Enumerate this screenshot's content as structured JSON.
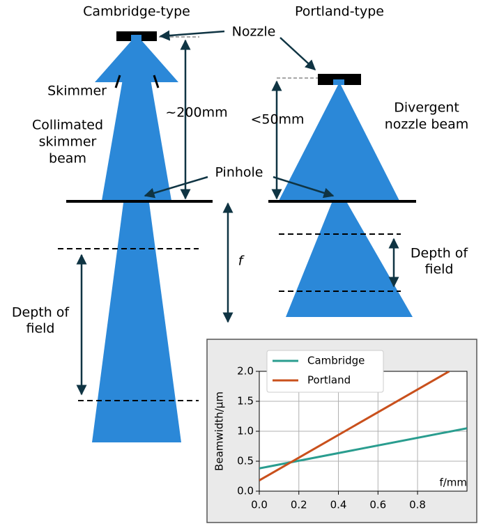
{
  "diagram": {
    "cambridge_title": "Cambridge-type",
    "portland_title": "Portland-type",
    "nozzle": "Nozzle",
    "skimmer": "Skimmer",
    "collimated": [
      "Collimated",
      "skimmer",
      "beam"
    ],
    "distance_cambridge": "~200mm",
    "distance_portland": "<50mm",
    "divergent": [
      "Divergent",
      "nozzle beam"
    ],
    "pinhole": "Pinhole",
    "focal": "f",
    "depth_left": [
      "Depth of",
      "field"
    ],
    "depth_right": [
      "Depth of",
      "field"
    ]
  },
  "chart_data": {
    "type": "line",
    "xlabel": "f/mm",
    "ylabel": "Beamwidth/μm",
    "xlim": [
      0,
      1.05
    ],
    "ylim": [
      0,
      2.0
    ],
    "xticks": [
      {
        "value": 0,
        "label": "0.0"
      },
      {
        "value": 0.2,
        "label": "0.2"
      },
      {
        "value": 0.4,
        "label": "0.4"
      },
      {
        "value": 0.6,
        "label": "0.6"
      },
      {
        "value": 0.8,
        "label": "0.8"
      }
    ],
    "yticks": [
      {
        "value": 0,
        "label": "0.0"
      },
      {
        "value": 0.5,
        "label": "0.5"
      },
      {
        "value": 1.0,
        "label": "1.0"
      },
      {
        "value": 1.5,
        "label": "1.5"
      },
      {
        "value": 2.0,
        "label": "2.0"
      }
    ],
    "grid": true,
    "legend": "upper left",
    "series": [
      {
        "name": "Cambridge",
        "color": "#2a9d8f",
        "x": [
          0,
          1.05
        ],
        "values": [
          0.38,
          1.05
        ]
      },
      {
        "name": "Portland",
        "color": "#c9501c",
        "x": [
          0,
          0.96
        ],
        "values": [
          0.18,
          2.0
        ]
      }
    ]
  }
}
